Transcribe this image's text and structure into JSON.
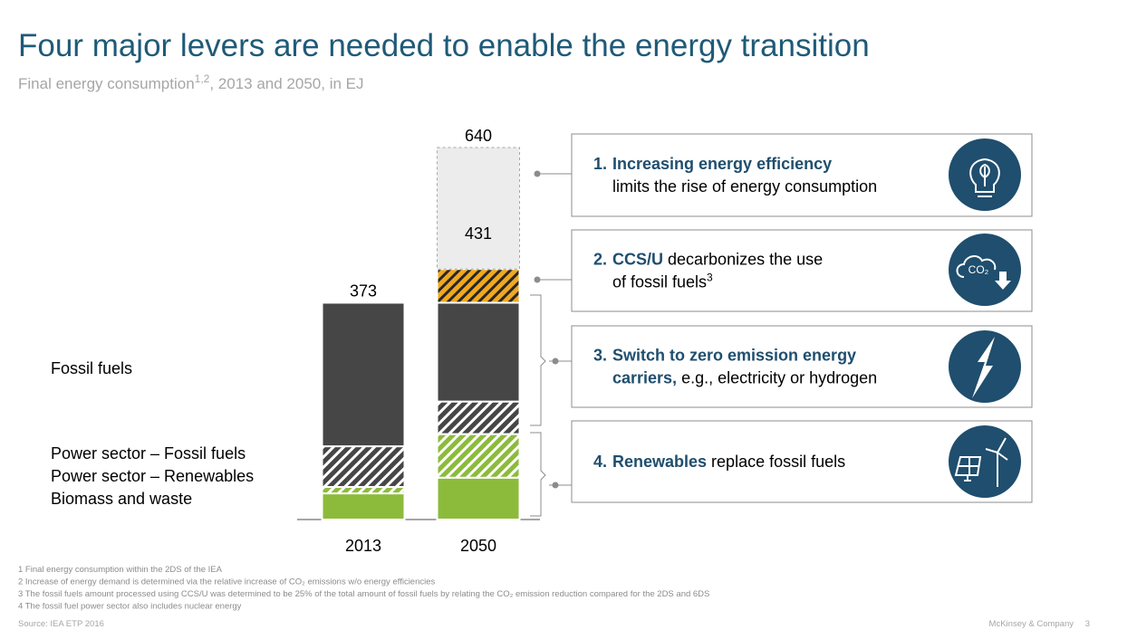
{
  "header": {
    "title": "Four major levers are needed to enable the energy transition",
    "subtitle": [
      {
        "text": "Final energy consumption"
      },
      {
        "text": "1,2",
        "sup": true
      },
      {
        "text": ",  2013 and 2050, in EJ"
      }
    ]
  },
  "chart_data": {
    "type": "stacked-bar",
    "categories": [
      "2013",
      "2050"
    ],
    "series": [
      {
        "name": "Biomass and waste",
        "color": "#8cbb3c",
        "values": [
          45,
          72
        ]
      },
      {
        "name": "Power sector – Renewables",
        "color": "#8cbb3c",
        "hatch": "#ffffff",
        "values": [
          11,
          75
        ]
      },
      {
        "name": "Power sector – Fossil fuels",
        "color": "#464646",
        "hatch": "#ffffff",
        "values": [
          70,
          56
        ]
      },
      {
        "name": "Fossil fuels",
        "color": "#464646",
        "values": [
          247,
          170
        ]
      },
      {
        "color": "#f0a81e",
        "hatch": "#262626",
        "values": [
          null,
          58
        ]
      },
      {
        "color": "#ececec",
        "dashed": true,
        "values": [
          null,
          209
        ]
      }
    ],
    "totals": [
      {
        "category": "2013",
        "value": 373
      },
      {
        "category": "2050",
        "value": 431
      },
      {
        "category": "2050",
        "value": 640
      }
    ]
  },
  "levers": [
    {
      "number": "1.",
      "lines": [
        [
          {
            "text": "Increasing energy efficiency",
            "bold": true
          }
        ],
        [
          {
            "text": "limits the rise of energy consumption"
          }
        ]
      ]
    },
    {
      "number": "2.",
      "lines": [
        [
          {
            "text": "CCS/U",
            "bold": true
          },
          {
            "text": " decarbonizes  the use"
          }
        ],
        [
          {
            "text": "of fossil fuels"
          },
          {
            "text": "3",
            "sup": true
          }
        ]
      ]
    },
    {
      "number": "3.",
      "lines": [
        [
          {
            "text": "Switch to zero emission energy",
            "bold": true
          }
        ],
        [
          {
            "text": "carriers,",
            "bold": true
          },
          {
            "text": " e.g., electricity or hydrogen"
          }
        ]
      ]
    },
    {
      "number": "4.",
      "lines": [
        [
          {
            "text": "Renewables",
            "bold": true
          },
          {
            "text": " replace fossil fuels"
          }
        ]
      ]
    }
  ],
  "icon_text": "CO₂",
  "footnotes": [
    "1 Final energy consumption within the 2DS of the IEA",
    "2 Increase of energy demand is determined via the relative increase of CO₂ emissions w/o energy efficiencies",
    "3 The fossil fuels amount processed using CCS/U was determined to be 25% of the total amount of fossil fuels by relating the CO₂ emission reduction compared for the 2DS and 6DS",
    "4 The fossil fuel power sector also includes nuclear energy"
  ],
  "footer": {
    "source": "Source: IEA ETP 2016",
    "company": "McKinsey & Company",
    "page": "3"
  }
}
